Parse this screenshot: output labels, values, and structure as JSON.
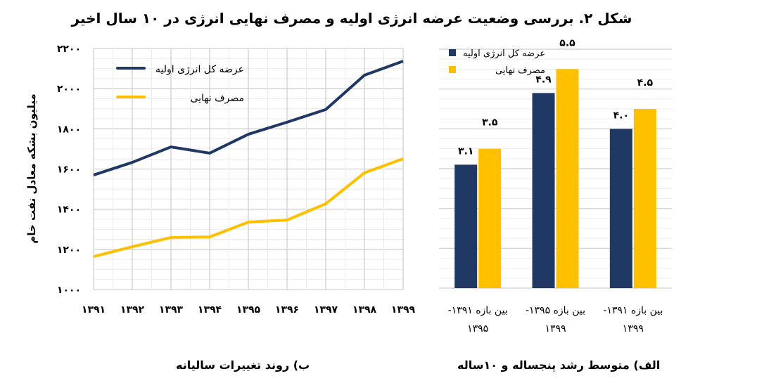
{
  "figure_title": "شکل ۲. بررسی وضعیت عرضه انرژی اولیه و مصرف نهایی انرژی در ۱۰ سال اخیر",
  "colors": {
    "primary_supply": "#203864",
    "final_consumption": "#ffc000",
    "grid": "#d9d9d9"
  },
  "chart_data": [
    {
      "type": "line",
      "subtitle": "ب) روند تغییرات سالیانه",
      "ylabel": "میلیون بشکه معادل نفت خام",
      "xlabel": "",
      "ylim": [
        1000,
        2200
      ],
      "yticks": [
        1000,
        1200,
        1400,
        1600,
        1800,
        2000,
        2200
      ],
      "ytick_labels": [
        "۱۰۰۰",
        "۱۲۰۰",
        "۱۴۰۰",
        "۱۶۰۰",
        "۱۸۰۰",
        "۲۰۰۰",
        "۲۲۰۰"
      ],
      "x": [
        "۱۳۹۱",
        "۱۳۹۲",
        "۱۳۹۳",
        "۱۳۹۴",
        "۱۳۹۵",
        "۱۳۹۶",
        "۱۳۹۷",
        "۱۳۹۸",
        "۱۳۹۹"
      ],
      "grid": true,
      "legend_position": "top-left",
      "series": [
        {
          "name": "عرضه کل انرژی اولیه",
          "color": "#203864",
          "values": [
            1570,
            1633,
            1710,
            1679,
            1773,
            1833,
            1896,
            2067,
            2137
          ]
        },
        {
          "name": "مصرف نهایی",
          "color": "#ffc000",
          "values": [
            1164,
            1213,
            1259,
            1262,
            1336,
            1346,
            1427,
            1581,
            1651
          ]
        }
      ]
    },
    {
      "type": "bar",
      "subtitle": "الف) متوسط رشد پنجساله و ۱۰ساله",
      "ylim": [
        0,
        6
      ],
      "grid": true,
      "legend_position": "top-left",
      "categories": [
        {
          "line1": "بین بازه ۱۳۹۱- ",
          "line2": "۱۳۹۵"
        },
        {
          "line1": "بین بازه ۱۳۹۵- ",
          "line2": "۱۳۹۹"
        },
        {
          "line1": "بین بازه ۱۳۹۱- ",
          "line2": "۱۳۹۹"
        }
      ],
      "series": [
        {
          "name": "عرضه کل انرژی اولیه",
          "color": "#203864",
          "values": [
            3.1,
            4.9,
            4.0
          ],
          "labels": [
            "۳.۱",
            "۴.۹",
            "۴.۰"
          ]
        },
        {
          "name": "مصرف نهایی",
          "color": "#ffc000",
          "values": [
            3.5,
            5.5,
            4.5
          ],
          "labels": [
            "۳.۵",
            "۵.۵",
            "۴.۵"
          ]
        }
      ]
    }
  ]
}
